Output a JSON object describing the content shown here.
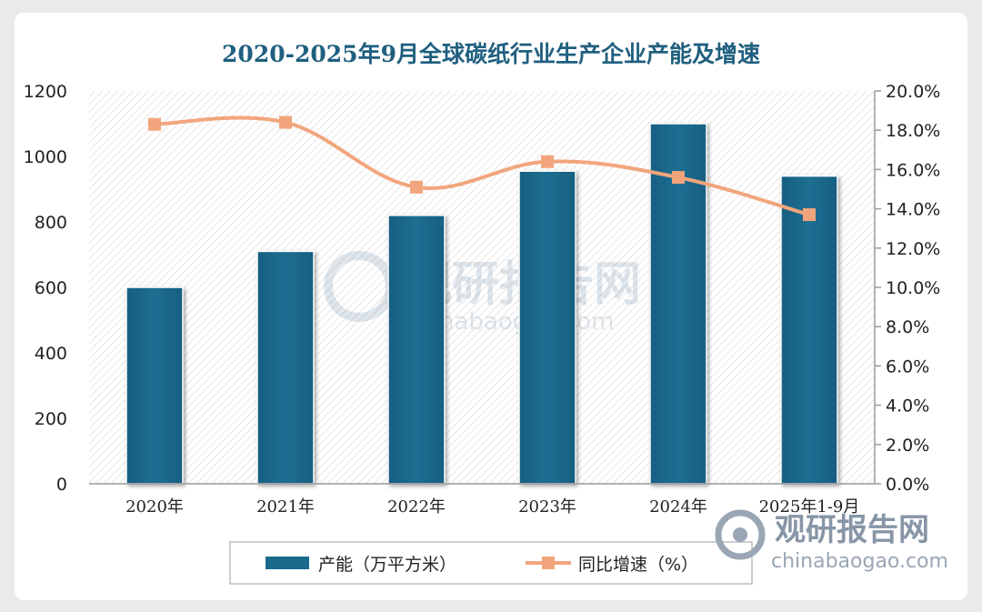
{
  "chart_data": {
    "type": "bar",
    "title": "2020-2025年9月全球碳纸行业生产企业产能及增速",
    "categories": [
      "2020年",
      "2021年",
      "2022年",
      "2023年",
      "2024年",
      "2025年1-9月"
    ],
    "series": [
      {
        "name": "产能（万平方米）",
        "type": "bar",
        "axis": "left",
        "values": [
          600,
          710,
          820,
          955,
          1100,
          940
        ],
        "color": "#1b6a8e"
      },
      {
        "name": "同比增速（%）",
        "type": "line",
        "axis": "right",
        "values": [
          18.3,
          18.4,
          15.1,
          16.4,
          15.6,
          13.7
        ],
        "color": "#f2a57c"
      }
    ],
    "y_left": {
      "min": 0,
      "max": 1200,
      "ticks": [
        "0",
        "200",
        "400",
        "600",
        "800",
        "1000",
        "1200"
      ]
    },
    "y_right": {
      "min": 0,
      "max": 20,
      "ticks": [
        "0.0%",
        "2.0%",
        "4.0%",
        "6.0%",
        "8.0%",
        "10.0%",
        "12.0%",
        "14.0%",
        "16.0%",
        "18.0%",
        "20.0%"
      ]
    },
    "legend_position": "bottom",
    "grid": false
  },
  "watermark": {
    "brand": "观研报告网",
    "url": "chinabaogao.com"
  }
}
